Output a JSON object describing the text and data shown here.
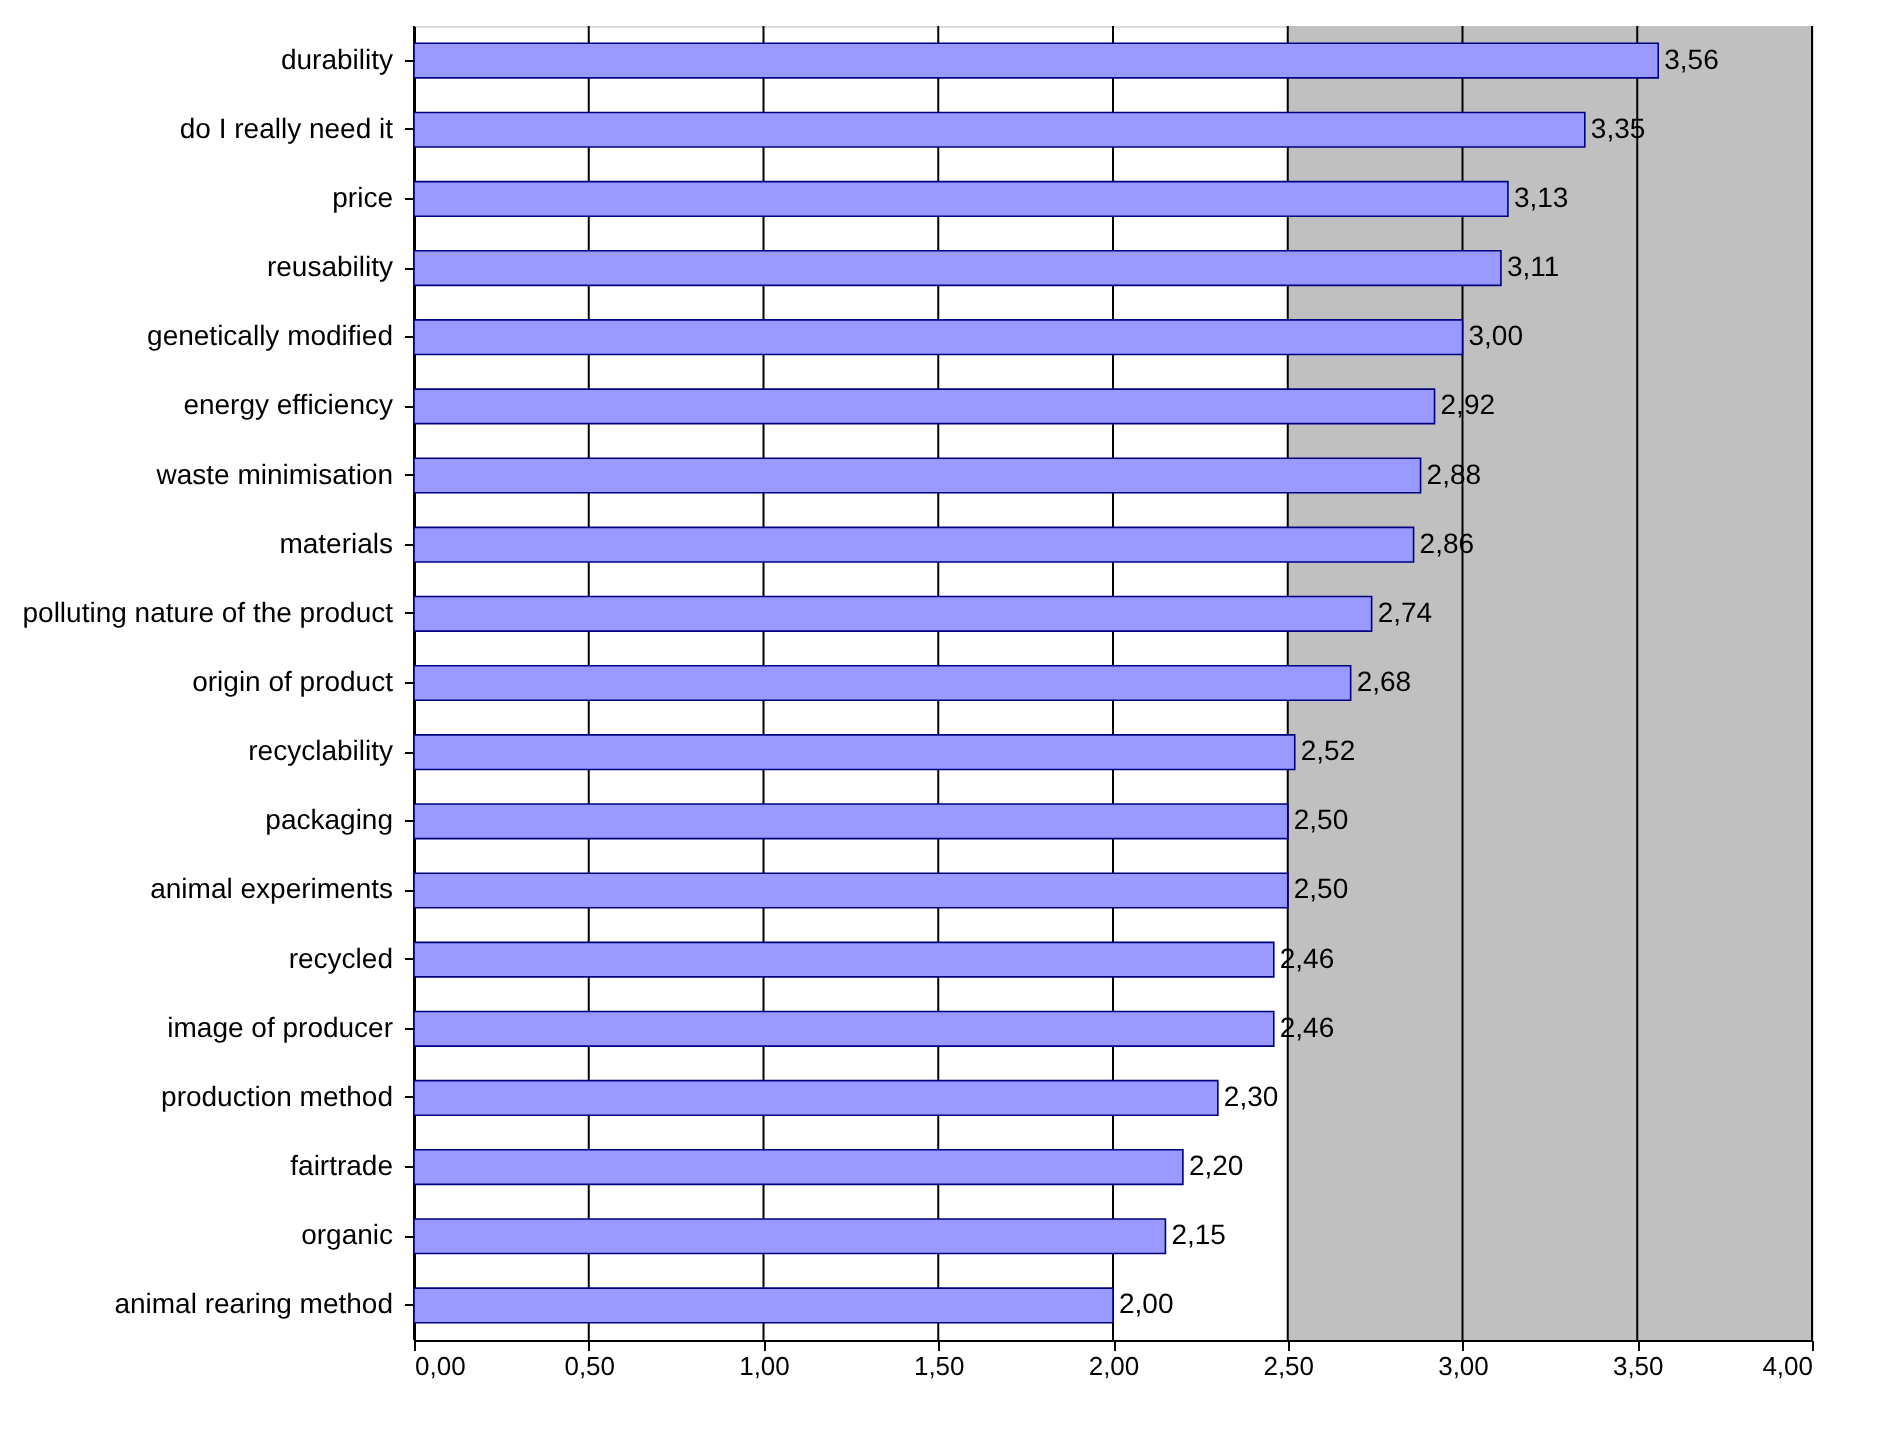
{
  "chart_data": {
    "type": "bar",
    "orientation": "horizontal",
    "categories": [
      "durability",
      "do I really need it",
      "price",
      "reusability",
      "genetically modified",
      "energy efficiency",
      "waste minimisation",
      "materials",
      "polluting nature of the product",
      "origin of product",
      "recyclability",
      "packaging",
      "animal experiments",
      "recycled",
      "image of producer",
      "production method",
      "fairtrade",
      "organic",
      "animal rearing method"
    ],
    "values": [
      3.56,
      3.35,
      3.13,
      3.11,
      3.0,
      2.92,
      2.88,
      2.86,
      2.74,
      2.68,
      2.52,
      2.5,
      2.5,
      2.46,
      2.46,
      2.3,
      2.2,
      2.15,
      2.0
    ],
    "value_labels": [
      "3,56",
      "3,35",
      "3,13",
      "3,11",
      "3,00",
      "2,92",
      "2,88",
      "2,86",
      "2,74",
      "2,68",
      "2,52",
      "2,50",
      "2,50",
      "2,46",
      "2,46",
      "2,30",
      "2,20",
      "2,15",
      "2,00"
    ],
    "color": "#9999ff",
    "xlim": [
      0,
      4
    ],
    "xticks": [
      {
        "value": 0,
        "label": "0,00"
      },
      {
        "value": 0.5,
        "label": "0,50"
      },
      {
        "value": 1,
        "label": "1,00"
      },
      {
        "value": 1.5,
        "label": "1,50"
      },
      {
        "value": 2,
        "label": "2,00"
      },
      {
        "value": 2.5,
        "label": "2,50"
      },
      {
        "value": 3,
        "label": "3,00"
      },
      {
        "value": 3.5,
        "label": "3,50"
      },
      {
        "value": 4,
        "label": "4,00"
      }
    ],
    "grid": "x",
    "bands": [
      {
        "axis": "x",
        "from": 2.5,
        "to": 4,
        "color": "#c0c0c0"
      }
    ]
  }
}
